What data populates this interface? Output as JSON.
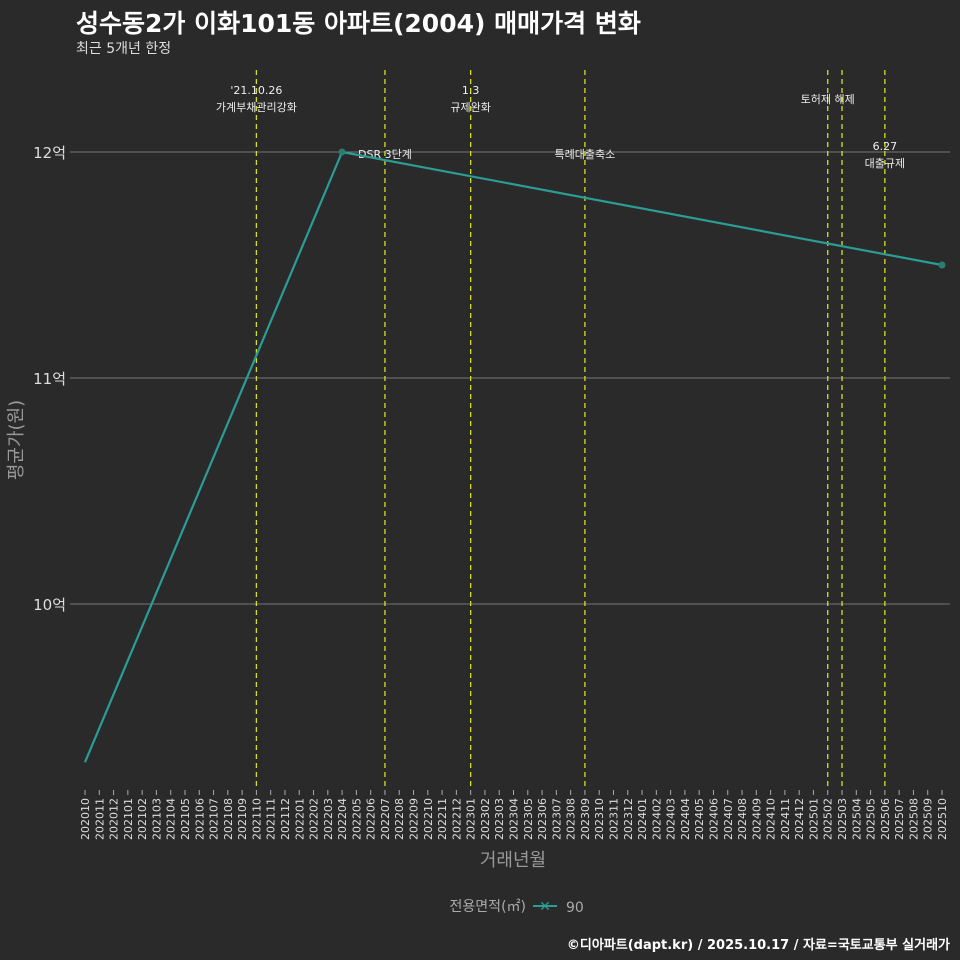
{
  "title": "성수동2가 이화101동 아파트(2004) 매매가격 변화",
  "subtitle": "최근 5개년 한정",
  "caption": "©디아파트(dapt.kr) / 2025.10.17 / 자료=국토교통부 실거래가",
  "colors": {
    "background": "#2b2a2b",
    "line": "#2a9d95",
    "vline": "#d4e020",
    "grid": "#777777"
  },
  "chart_data": {
    "type": "line",
    "xlabel": "거래년월",
    "ylabel": "평균가(원)",
    "ylim": [
      9.1,
      12.35
    ],
    "yticks": [
      {
        "v": 10,
        "label": "10억"
      },
      {
        "v": 11,
        "label": "11억"
      },
      {
        "v": 12,
        "label": "12억"
      }
    ],
    "x_start": "202010",
    "x_end": "202510",
    "legend": {
      "title": "전용면적(㎡)",
      "entries": [
        "90"
      ],
      "position": "bottom"
    },
    "series": [
      {
        "name": "90",
        "points": [
          {
            "x": "202010",
            "y": 9.3
          },
          {
            "x": "202204",
            "y": 12.0
          },
          {
            "x": "202510",
            "y": 11.5
          }
        ]
      }
    ],
    "events": [
      {
        "x": "202110",
        "lines": [
          "'21.10.26",
          "가계부채관리강화"
        ],
        "pos": "top"
      },
      {
        "x": "202207",
        "lines": [
          "DSR 3단계"
        ],
        "pos": "mid"
      },
      {
        "x": "202301",
        "lines": [
          "1.3",
          "규제완화"
        ],
        "pos": "top"
      },
      {
        "x": "202309",
        "lines": [
          "특례대출축소"
        ],
        "pos": "mid"
      },
      {
        "x": "202502",
        "lines": [
          "토허제 해제"
        ],
        "pos": "top2"
      },
      {
        "x": "202503",
        "lines": [],
        "pos": "none"
      },
      {
        "x": "202506",
        "lines": [
          "6.27",
          "대출규제"
        ],
        "pos": "low"
      }
    ]
  }
}
